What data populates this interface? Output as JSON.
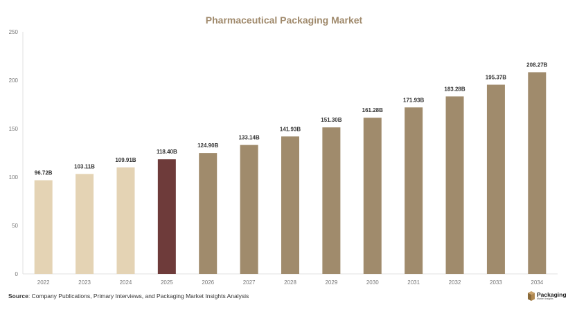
{
  "chart_data": {
    "type": "bar",
    "title": "Pharmaceutical Packaging Market",
    "categories": [
      "2022",
      "2023",
      "2024",
      "2025",
      "2026",
      "2027",
      "2028",
      "2029",
      "2030",
      "2031",
      "2032",
      "2033",
      "2034"
    ],
    "values": [
      96.72,
      103.11,
      109.91,
      118.4,
      124.9,
      133.14,
      141.93,
      151.3,
      161.28,
      171.93,
      183.28,
      195.37,
      208.27
    ],
    "data_labels": [
      "96.72B",
      "103.11B",
      "109.91B",
      "118.40B",
      "124.90B",
      "133.14B",
      "141.93B",
      "151.30B",
      "161.28B",
      "171.93B",
      "183.28B",
      "195.37B",
      "208.27B"
    ],
    "bar_colors": [
      "#e4d3b4",
      "#e4d3b4",
      "#e4d3b4",
      "#6e3b3a",
      "#a08b6c",
      "#a08b6c",
      "#a08b6c",
      "#a08b6c",
      "#a08b6c",
      "#a08b6c",
      "#a08b6c",
      "#a08b6c",
      "#a08b6c"
    ],
    "ylim": [
      0,
      250
    ],
    "yticks": [
      0,
      50,
      100,
      150,
      200,
      250
    ],
    "xlabel": "",
    "ylabel": "",
    "grid": false,
    "legend": "none"
  },
  "footer": {
    "source_label": "Source",
    "source_text": ": Company Publications, Primary Interviews, and Packaging Market Insights Analysis",
    "logo_title": "Packaging",
    "logo_subtitle": "Market Insights"
  },
  "colors": {
    "title": "#a08a6c",
    "axis": "#e0e0e0",
    "tick_text": "#777777",
    "label_text": "#333333"
  }
}
